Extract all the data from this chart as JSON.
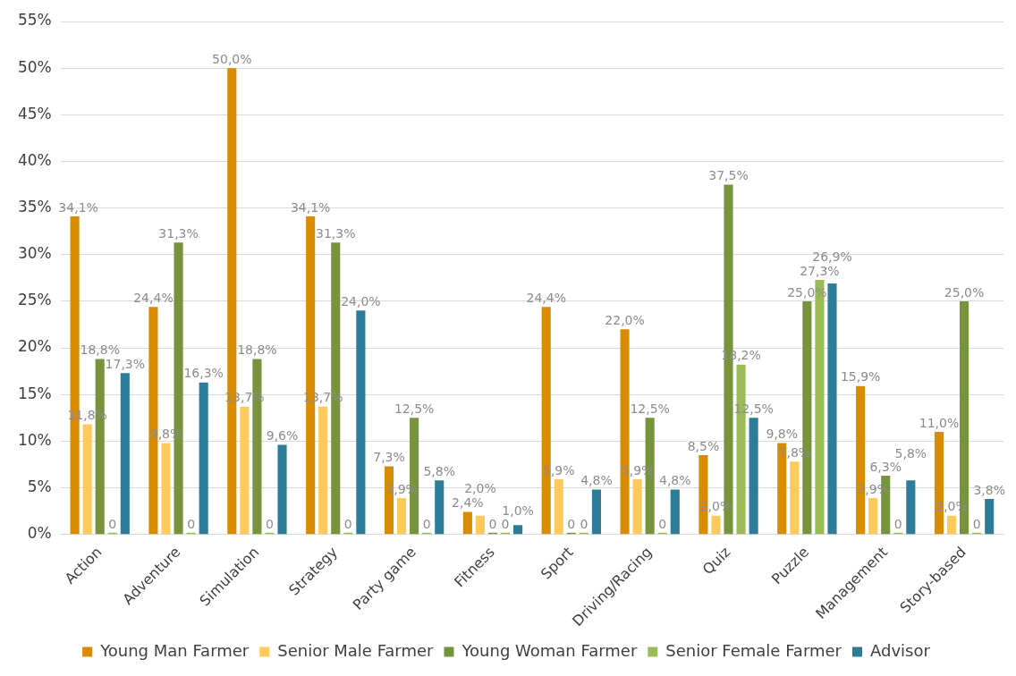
{
  "chart_data": {
    "type": "bar",
    "categories": [
      "Action",
      "Adventure",
      "Simulation",
      "Strategy",
      "Party game",
      "Fitness",
      "Sport",
      "Driving/Racing",
      "Quiz",
      "Puzzle",
      "Management",
      "Story-based"
    ],
    "series": [
      {
        "name": "Young Man Farmer",
        "color": "#da8c00",
        "values": [
          34.1,
          24.4,
          50.0,
          34.1,
          7.3,
          2.4,
          24.4,
          22.0,
          8.5,
          9.8,
          15.9,
          11.0
        ],
        "value_labels": [
          "34,1%",
          "24,4%",
          "50,0%",
          "34,1%",
          "7,3%",
          "2,4%",
          "24,4%",
          "22,0%",
          "8,5%",
          "9,8%",
          "15,9%",
          "11,0%"
        ]
      },
      {
        "name": "Senior Male Farmer",
        "color": "#ffc95c",
        "values": [
          11.8,
          9.8,
          13.7,
          13.7,
          3.9,
          2.0,
          5.9,
          5.9,
          2.0,
          7.8,
          3.9,
          2.0
        ],
        "value_labels": [
          "11,8%",
          "9,8%",
          "13,7%",
          "13,7%",
          "3,9%",
          "2,0%",
          "5,9%",
          "5,9%",
          "2,0%",
          "7,8%",
          "3,9%",
          "2,0%"
        ]
      },
      {
        "name": "Young Woman Farmer",
        "color": "#77933c",
        "values": [
          18.8,
          31.3,
          18.8,
          31.3,
          12.5,
          0,
          0,
          12.5,
          37.5,
          25.0,
          6.3,
          25.0
        ],
        "value_labels": [
          "18,8%",
          "31,3%",
          "18,8%",
          "31,3%",
          "12,5%",
          "0",
          "0",
          "12,5%",
          "37,5%",
          "25,0%",
          "6,3%",
          "25,0%"
        ]
      },
      {
        "name": "Senior Female Farmer",
        "color": "#9bbb59",
        "values": [
          0,
          0,
          0,
          0,
          0,
          0,
          0,
          0,
          18.2,
          27.3,
          0,
          0
        ],
        "value_labels": [
          "0",
          "0",
          "0",
          "0",
          "0",
          "0",
          "0",
          "0",
          "18,2%",
          "27,3%",
          "0",
          "0"
        ]
      },
      {
        "name": "Advisor",
        "color": "#2c7d9a",
        "values": [
          17.3,
          16.3,
          9.6,
          24.0,
          5.8,
          1.0,
          4.8,
          4.8,
          12.5,
          26.9,
          5.8,
          3.8
        ],
        "value_labels": [
          "17,3%",
          "16,3%",
          "9,6%",
          "24,0%",
          "5,8%",
          "1,0%",
          "4,8%",
          "4,8%",
          "12,5%",
          "26,9%",
          "5,8%",
          "3,8%"
        ]
      }
    ],
    "ylim": [
      0,
      55
    ],
    "yticks": [
      {
        "value": 0,
        "label": "0%"
      },
      {
        "value": 5,
        "label": "5%"
      },
      {
        "value": 10,
        "label": "10%"
      },
      {
        "value": 15,
        "label": "15%"
      },
      {
        "value": 20,
        "label": "20%"
      },
      {
        "value": 25,
        "label": "25%"
      },
      {
        "value": 30,
        "label": "30%"
      },
      {
        "value": 35,
        "label": "35%"
      },
      {
        "value": 40,
        "label": "40%"
      },
      {
        "value": 45,
        "label": "45%"
      },
      {
        "value": 50,
        "label": "50%"
      },
      {
        "value": 55,
        "label": "55%"
      }
    ],
    "grid": "y",
    "legend": "bottom"
  }
}
